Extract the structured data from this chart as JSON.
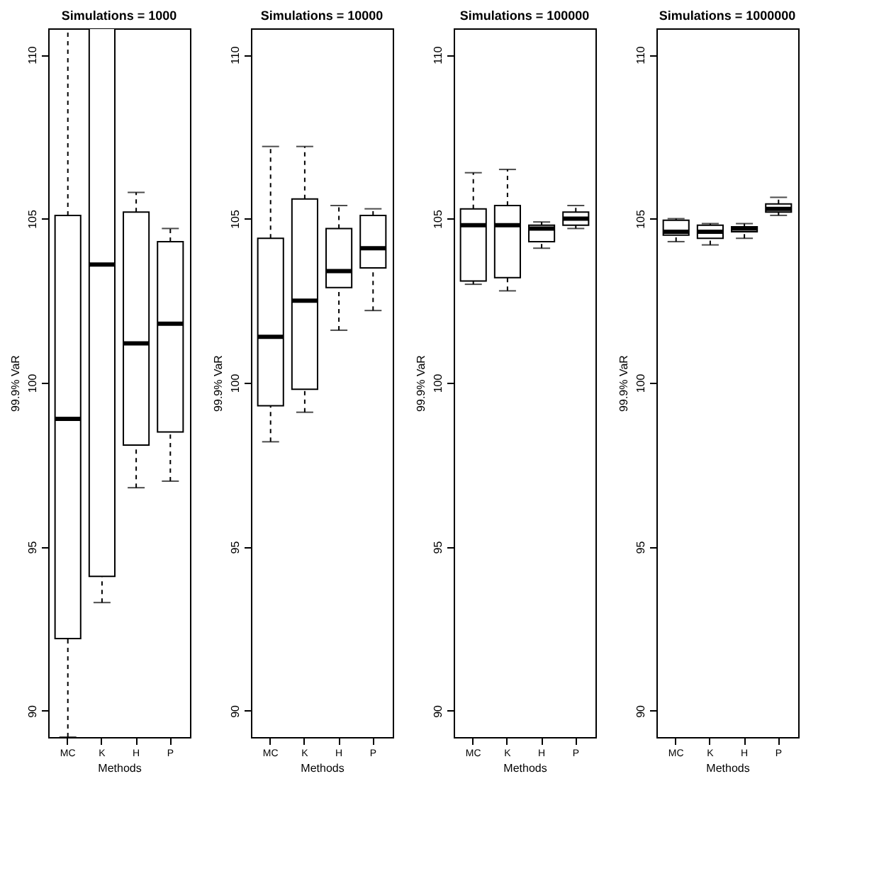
{
  "chart_data": [
    {
      "type": "box",
      "title": "Simulations = 1000",
      "xlabel": "Methods",
      "ylabel": "99.9% VaR",
      "categories": [
        "MC",
        "K",
        "H",
        "P"
      ],
      "ylim": [
        89.2,
        110.8
      ],
      "yticks": [
        90,
        95,
        100,
        105,
        110
      ],
      "grid": false,
      "boxes": [
        {
          "low": 89.2,
          "q1": 92.2,
          "median": 98.9,
          "q3": 105.1,
          "high": 110.8
        },
        {
          "low": 93.3,
          "q1": 94.1,
          "median": 103.6,
          "q3": 110.8,
          "high": 110.8
        },
        {
          "low": 96.8,
          "q1": 98.1,
          "median": 101.2,
          "q3": 105.2,
          "high": 105.8
        },
        {
          "low": 97.0,
          "q1": 98.5,
          "median": 101.8,
          "q3": 104.3,
          "high": 104.7
        }
      ]
    },
    {
      "type": "box",
      "title": "Simulations = 10000",
      "xlabel": "Methods",
      "ylabel": "99.9% VaR",
      "categories": [
        "MC",
        "K",
        "H",
        "P"
      ],
      "ylim": [
        89.2,
        110.8
      ],
      "yticks": [
        90,
        95,
        100,
        105,
        110
      ],
      "grid": false,
      "boxes": [
        {
          "low": 98.2,
          "q1": 99.3,
          "median": 101.4,
          "q3": 104.4,
          "high": 107.2
        },
        {
          "low": 99.1,
          "q1": 99.8,
          "median": 102.5,
          "q3": 105.6,
          "high": 107.2
        },
        {
          "low": 101.6,
          "q1": 102.9,
          "median": 103.4,
          "q3": 104.7,
          "high": 105.4
        },
        {
          "low": 102.2,
          "q1": 103.5,
          "median": 104.1,
          "q3": 105.1,
          "high": 105.3
        }
      ]
    },
    {
      "type": "box",
      "title": "Simulations = 100000",
      "xlabel": "Methods",
      "ylabel": "99.9% VaR",
      "categories": [
        "MC",
        "K",
        "H",
        "P"
      ],
      "ylim": [
        89.2,
        110.8
      ],
      "yticks": [
        90,
        95,
        100,
        105,
        110
      ],
      "grid": false,
      "boxes": [
        {
          "low": 103.0,
          "q1": 103.1,
          "median": 104.8,
          "q3": 105.3,
          "high": 106.4
        },
        {
          "low": 102.8,
          "q1": 103.2,
          "median": 104.8,
          "q3": 105.4,
          "high": 106.5
        },
        {
          "low": 104.1,
          "q1": 104.3,
          "median": 104.7,
          "q3": 104.8,
          "high": 104.9
        },
        {
          "low": 104.7,
          "q1": 104.8,
          "median": 105.0,
          "q3": 105.2,
          "high": 105.4
        }
      ]
    },
    {
      "type": "box",
      "title": "Simulations = 1000000",
      "xlabel": "Methods",
      "ylabel": "99.9% VaR",
      "categories": [
        "MC",
        "K",
        "H",
        "P"
      ],
      "ylim": [
        89.2,
        110.8
      ],
      "yticks": [
        90,
        95,
        100,
        105,
        110
      ],
      "grid": false,
      "boxes": [
        {
          "low": 104.3,
          "q1": 104.5,
          "median": 104.6,
          "q3": 104.95,
          "high": 105.0
        },
        {
          "low": 104.2,
          "q1": 104.4,
          "median": 104.6,
          "q3": 104.8,
          "high": 104.85
        },
        {
          "low": 104.4,
          "q1": 104.6,
          "median": 104.7,
          "q3": 104.75,
          "high": 104.85
        },
        {
          "low": 105.1,
          "q1": 105.2,
          "median": 105.3,
          "q3": 105.45,
          "high": 105.65
        }
      ]
    }
  ]
}
